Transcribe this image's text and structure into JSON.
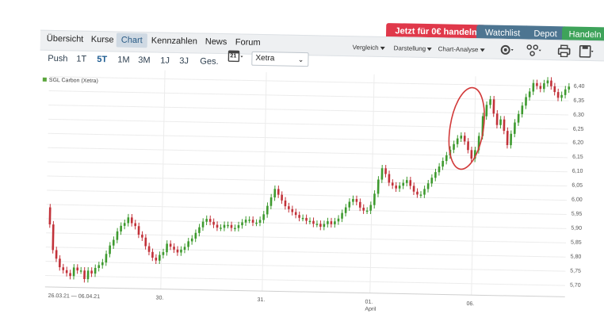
{
  "buttons": {
    "trade": "Jetzt für 0€ handeln",
    "watchlist": "Watchlist",
    "depot": "Depot",
    "handeln": "Handeln"
  },
  "colors": {
    "trade": "#e0384a",
    "watchlist": "#4d7591",
    "depot": "#4d7591",
    "handeln": "#3ea35a",
    "up": "#3e9a2f",
    "down": "#c2323a",
    "annotation": "#d23a3a"
  },
  "nav": {
    "tabs": [
      "Übersicht",
      "Kurse",
      "Chart",
      "Kennzahlen",
      "News",
      "Forum"
    ],
    "active": "Chart"
  },
  "ranges": {
    "items": [
      "Push",
      "1T",
      "5T",
      "1M",
      "3M",
      "1J",
      "3J",
      "Ges."
    ],
    "active": "5T"
  },
  "calendar_day": "21",
  "exchange": "Xetra",
  "controls": {
    "vergleich": "Vergleich",
    "darstellung": "Darstellung",
    "analyse": "Chart-Analyse"
  },
  "icons": [
    "calendar-icon",
    "gear-icon",
    "network-icon",
    "printer-icon",
    "save-icon"
  ],
  "legend": "SGL Carbon (Xetra)",
  "chart_data": {
    "type": "line",
    "ylim": [
      5.66,
      6.43
    ],
    "y_ticks": [
      "6,40",
      "6,35",
      "6,30",
      "6,25",
      "6,20",
      "6,15",
      "6,10",
      "6,05",
      "6,00",
      "5,95",
      "5,90",
      "5,85",
      "5,80",
      "5,75",
      "5,70"
    ],
    "x_ticks": [
      {
        "label": "26.03.21 — 06.04.21",
        "sub": ""
      },
      {
        "label": "30.",
        "sub": ""
      },
      {
        "label": "31.",
        "sub": ""
      },
      {
        "label": "01.",
        "sub": "April"
      },
      {
        "label": "06.",
        "sub": ""
      }
    ],
    "range_label": "26.03.21 — 06.04.21",
    "series": [
      {
        "values": [
          5.94,
          5.88,
          5.79,
          5.76,
          5.73,
          5.72,
          5.71,
          5.7,
          5.73,
          5.72,
          5.72,
          5.69,
          5.72,
          5.71,
          5.73,
          5.74,
          5.75,
          5.78,
          5.81,
          5.83,
          5.86,
          5.88,
          5.89,
          5.91,
          5.89,
          5.88,
          5.85,
          5.84,
          5.81,
          5.79,
          5.77,
          5.76,
          5.78,
          5.79,
          5.82,
          5.81,
          5.8,
          5.79,
          5.8,
          5.81,
          5.83,
          5.84,
          5.86,
          5.88,
          5.9,
          5.91,
          5.9,
          5.89,
          5.88,
          5.88,
          5.89,
          5.89,
          5.88,
          5.88,
          5.89,
          5.9,
          5.91,
          5.91,
          5.9,
          5.9,
          5.91,
          5.93,
          5.96,
          5.99,
          6.02,
          6.0,
          5.98,
          5.96,
          5.95,
          5.94,
          5.93,
          5.92,
          5.92,
          5.91,
          5.91,
          5.9,
          5.9,
          5.89,
          5.9,
          5.91,
          5.9,
          5.91,
          5.92,
          5.94,
          5.96,
          5.98,
          5.99,
          5.98,
          5.96,
          5.95,
          5.95,
          5.97,
          6.01,
          6.06,
          6.1,
          6.08,
          6.05,
          6.04,
          6.03,
          6.04,
          6.05,
          6.06,
          6.04,
          6.02,
          6.01,
          6.01,
          6.03,
          6.05,
          6.07,
          6.09,
          6.11,
          6.13,
          6.15,
          6.17,
          6.19,
          6.21,
          6.22,
          6.2,
          6.17,
          6.14,
          6.17,
          6.22,
          6.29,
          6.33,
          6.35,
          6.3,
          6.26,
          6.28,
          6.24,
          6.19,
          6.23,
          6.27,
          6.3,
          6.33,
          6.36,
          6.38,
          6.41,
          6.4,
          6.39,
          6.41,
          6.42,
          6.4,
          6.38,
          6.36,
          6.37,
          6.39,
          6.4
        ]
      }
    ]
  }
}
